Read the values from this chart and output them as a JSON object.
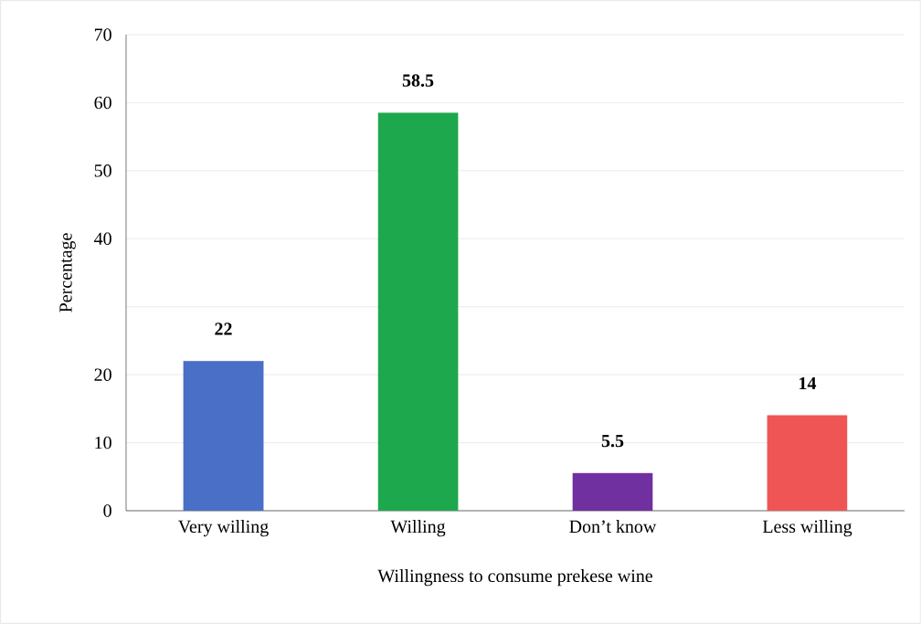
{
  "chart_data": {
    "type": "bar",
    "xlabel": "Willingness to consume prekese wine",
    "ylabel": "Percentage",
    "categories": [
      "Very willing",
      "Willing",
      "Don’t know",
      "Less willing"
    ],
    "values": [
      22,
      58.5,
      5.5,
      14
    ],
    "colors": [
      "#4a6fc7",
      "#1ea84e",
      "#7030a0",
      "#f05555"
    ],
    "ylim": [
      0,
      70
    ],
    "yticks": [
      0,
      10,
      20,
      {
        "value": 30,
        "label": null
      },
      40,
      50,
      60,
      70
    ],
    "grid": "y",
    "data_labels": true
  }
}
